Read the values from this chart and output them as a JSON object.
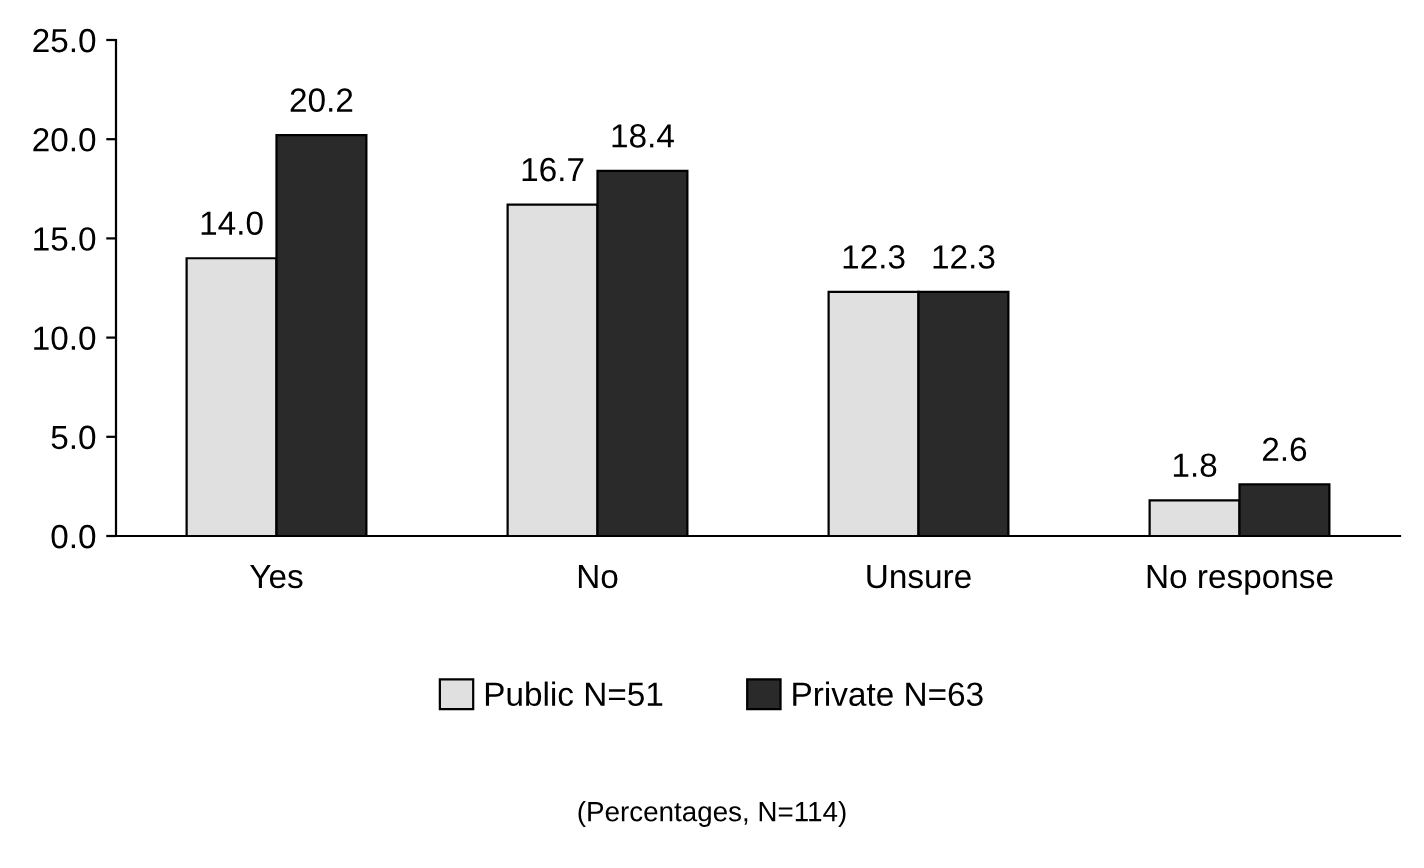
{
  "chart_data": {
    "type": "bar",
    "categories": [
      "Yes",
      "No",
      "Unsure",
      "No response"
    ],
    "series": [
      {
        "name": "Public N=51",
        "color": "#e0e0e0",
        "values": [
          14.0,
          16.7,
          12.3,
          1.8
        ],
        "value_labels": [
          "14.0",
          "16.7",
          "12.3",
          "1.8"
        ]
      },
      {
        "name": "Private N=63",
        "color": "#2a2a2a",
        "values": [
          20.2,
          18.4,
          12.3,
          2.6
        ],
        "value_labels": [
          "20.2",
          "18.4",
          "12.3",
          "2.6"
        ]
      }
    ],
    "ylim": [
      0,
      25
    ],
    "yticks": [
      {
        "value": 0,
        "label": "0.0"
      },
      {
        "value": 5,
        "label": "5.0"
      },
      {
        "value": 10,
        "label": "10.0"
      },
      {
        "value": 15,
        "label": "15.0"
      },
      {
        "value": 20,
        "label": "20.0"
      },
      {
        "value": 25,
        "label": "25.0"
      }
    ],
    "grid": false,
    "legend": "bottom",
    "annotations": [
      "(Percentages, N=114)"
    ]
  }
}
